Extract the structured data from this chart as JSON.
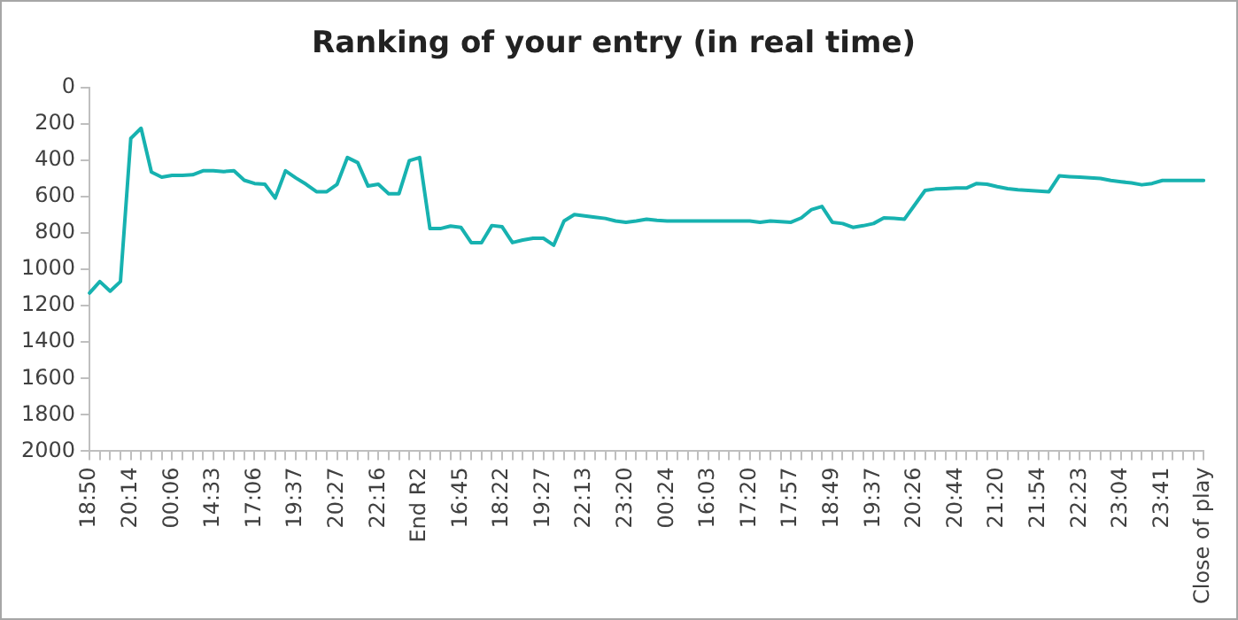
{
  "chart_data": {
    "type": "line",
    "title": "Ranking of your entry (in real time)",
    "categories": [
      "18:50",
      null,
      null,
      null,
      "20:14",
      null,
      null,
      null,
      "00:06",
      null,
      null,
      null,
      "14:33",
      null,
      null,
      null,
      "17:06",
      null,
      null,
      null,
      "19:37",
      null,
      null,
      null,
      "20:27",
      null,
      null,
      null,
      "22:16",
      null,
      null,
      null,
      "End R2",
      null,
      null,
      null,
      "16:45",
      null,
      null,
      null,
      "18:22",
      null,
      null,
      null,
      "19:27",
      null,
      null,
      null,
      "22:13",
      null,
      null,
      null,
      "23:20",
      null,
      null,
      null,
      "00:24",
      null,
      null,
      null,
      "16:03",
      null,
      null,
      null,
      "17:20",
      null,
      null,
      null,
      "17:57",
      null,
      null,
      null,
      "18:49",
      null,
      null,
      null,
      "19:37",
      null,
      null,
      null,
      "20:26",
      null,
      null,
      null,
      "20:44",
      null,
      null,
      null,
      "21:20",
      null,
      null,
      null,
      "21:54",
      null,
      null,
      null,
      "22:23",
      null,
      null,
      null,
      "23:04",
      null,
      null,
      null,
      "23:41",
      null,
      null,
      null,
      "Close of play"
    ],
    "series": [
      {
        "color": "#17b2b0",
        "values": [
          1130,
          1067,
          1120,
          1067,
          280,
          224,
          465,
          493,
          483,
          483,
          480,
          458,
          458,
          462,
          458,
          510,
          528,
          532,
          608,
          458,
          497,
          532,
          573,
          573,
          532,
          385,
          413,
          542,
          532,
          584,
          584,
          402,
          385,
          776,
          776,
          762,
          769,
          853,
          853,
          759,
          766,
          853,
          839,
          829,
          829,
          867,
          734,
          699,
          706,
          713,
          720,
          734,
          741,
          734,
          724,
          730,
          734,
          734,
          734,
          734,
          734,
          734,
          734,
          734,
          734,
          741,
          734,
          738,
          741,
          717,
          671,
          654,
          741,
          748,
          769,
          760,
          748,
          717,
          720,
          724,
          645,
          566,
          558,
          556,
          553,
          553,
          528,
          532,
          545,
          556,
          562,
          566,
          570,
          573,
          486,
          490,
          493,
          497,
          500,
          511,
          518,
          525,
          535,
          528,
          511,
          511,
          511,
          511,
          511
        ]
      }
    ],
    "ylim": [
      2000,
      0
    ],
    "yticks": [
      0,
      200,
      400,
      600,
      800,
      1000,
      1200,
      1400,
      1600,
      1800,
      2000
    ],
    "grid": false,
    "legend": false,
    "marker": "none",
    "line_style": "solid"
  }
}
